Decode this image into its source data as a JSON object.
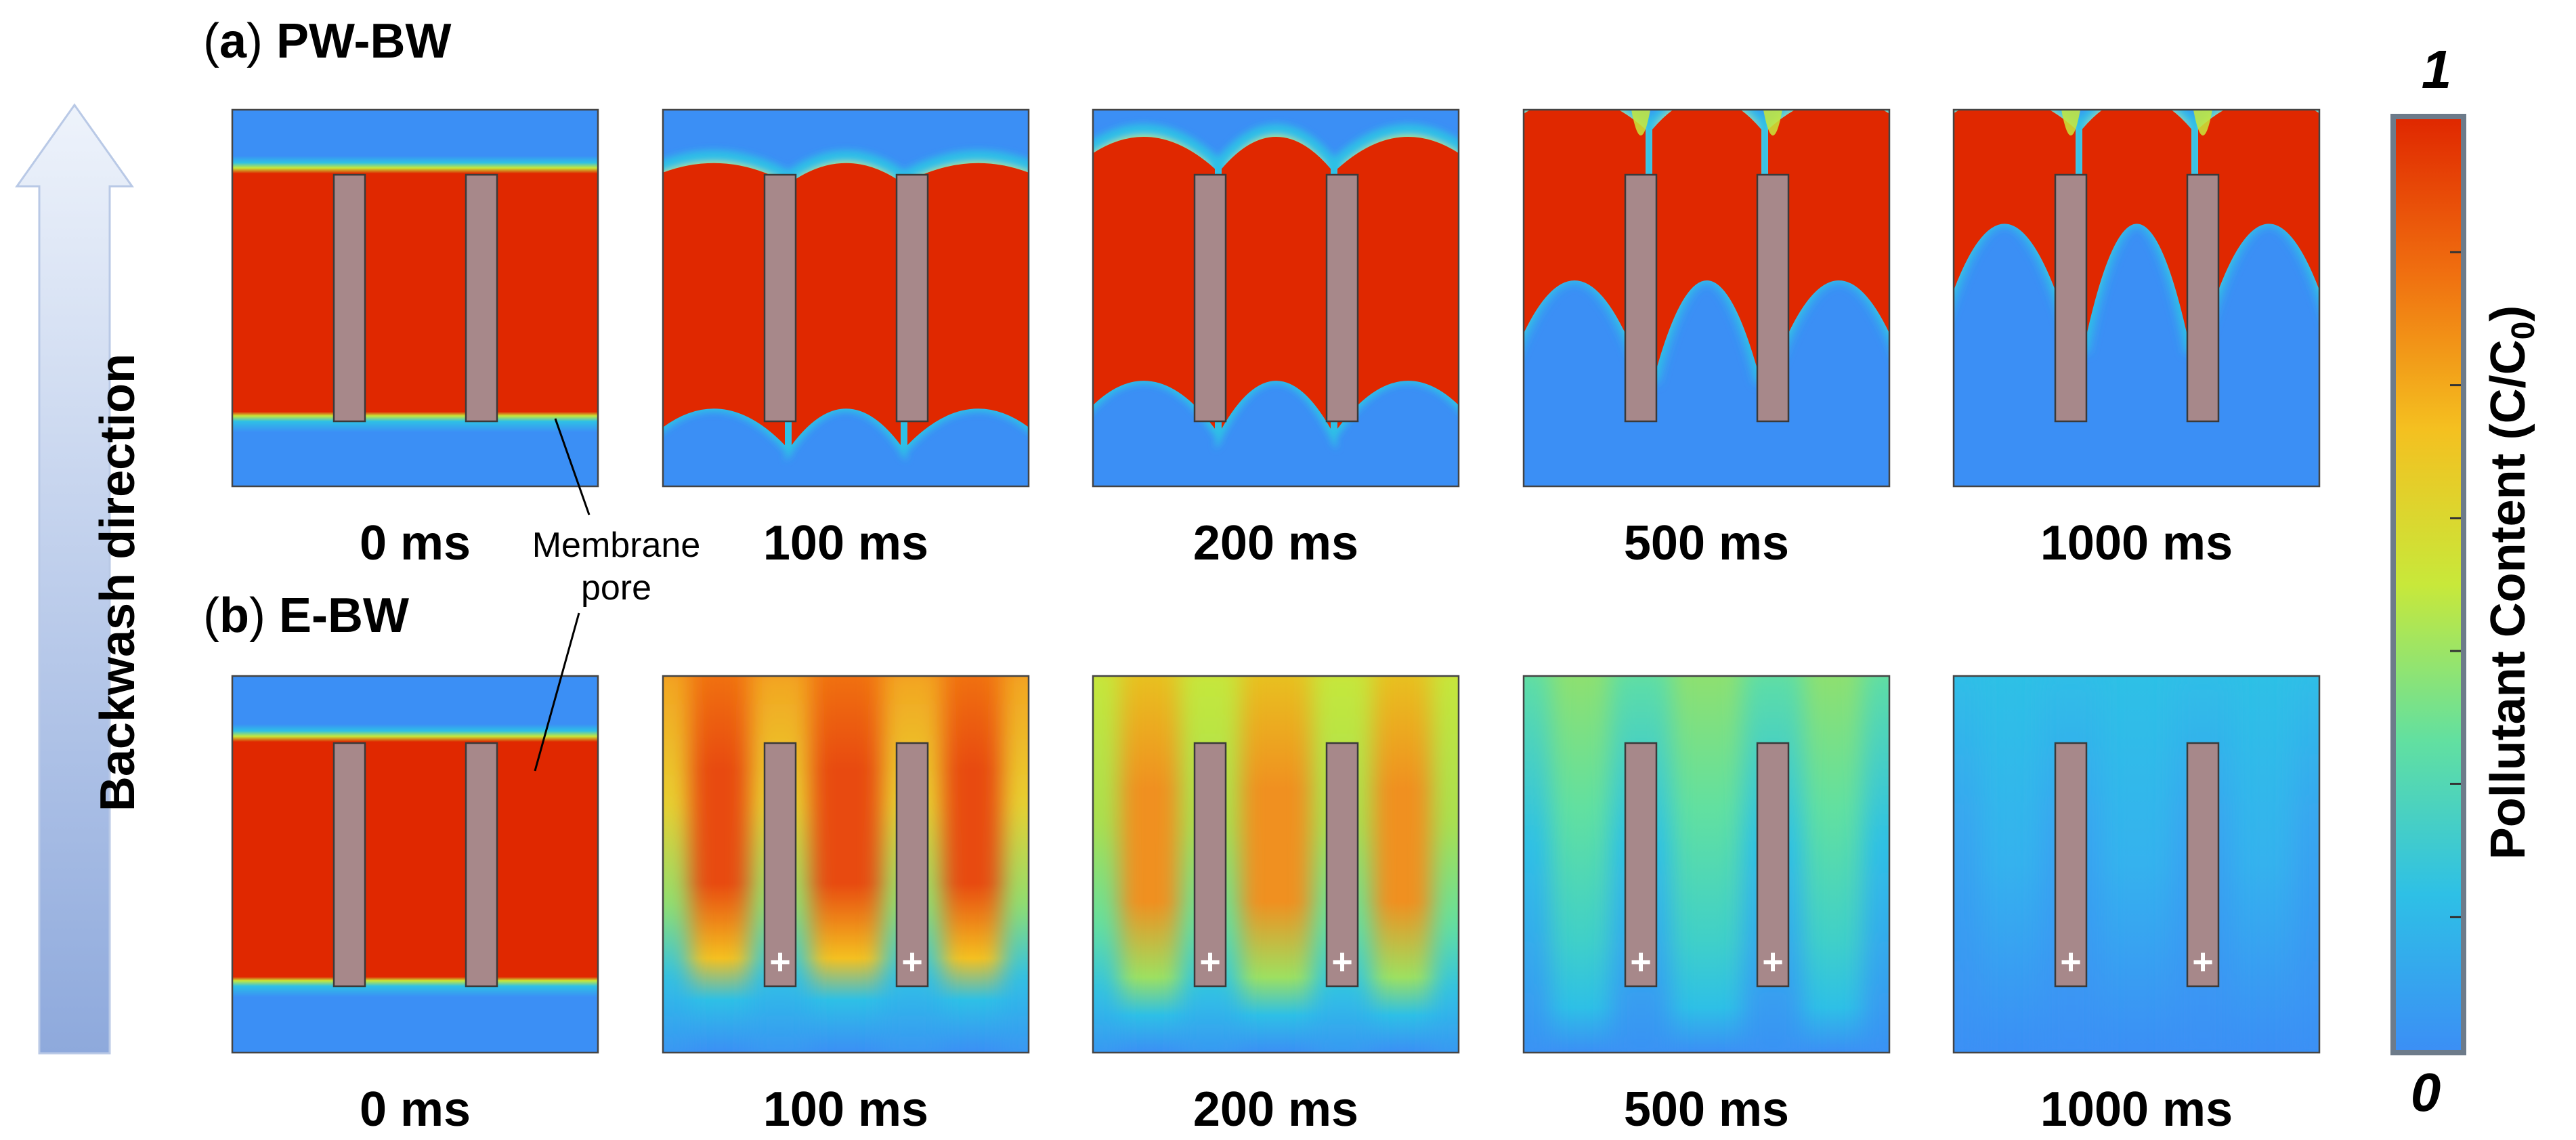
{
  "figure": {
    "arrow_label": "Backwash direction",
    "colorbar": {
      "title_prefix": "Pollutant Content (C/C",
      "title_sub": "0",
      "title_suffix": ")",
      "max_label": "1",
      "min_label": "0",
      "colors": [
        "#3b8ff5",
        "#2ec0e6",
        "#62e0a0",
        "#c8e83a",
        "#f4c020",
        "#f07010",
        "#e02800"
      ]
    },
    "annotation": {
      "line1": "Membrane",
      "line2": "pore"
    },
    "rows": [
      {
        "label_prefix": "(",
        "label_letter": "a",
        "label_suffix": ")",
        "label_name": "PW-BW",
        "panels": [
          {
            "time": "0 ms",
            "mode": "pw",
            "stage": 0
          },
          {
            "time": "100 ms",
            "mode": "pw",
            "stage": 1
          },
          {
            "time": "200 ms",
            "mode": "pw",
            "stage": 2
          },
          {
            "time": "500 ms",
            "mode": "pw",
            "stage": 3
          },
          {
            "time": "1000 ms",
            "mode": "pw",
            "stage": 4
          }
        ]
      },
      {
        "label_prefix": "(",
        "label_letter": "b",
        "label_suffix": ")",
        "label_name": "E-BW",
        "panels": [
          {
            "time": "0 ms",
            "mode": "e",
            "stage": 0,
            "plus": ""
          },
          {
            "time": "100 ms",
            "mode": "e",
            "stage": 1,
            "plus": "+"
          },
          {
            "time": "200 ms",
            "mode": "e",
            "stage": 2,
            "plus": "+"
          },
          {
            "time": "500 ms",
            "mode": "e",
            "stage": 3,
            "plus": "+"
          },
          {
            "time": "1000 ms",
            "mode": "e",
            "stage": 4,
            "plus": "+"
          }
        ]
      }
    ]
  }
}
